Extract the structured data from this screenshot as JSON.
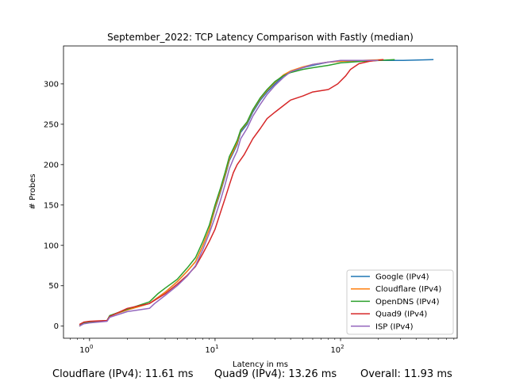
{
  "chart_data": {
    "type": "line",
    "title": "September_2022: TCP Latency Comparison with Fastly (median)",
    "xlabel": "Latency in ms",
    "ylabel": "# Probes",
    "xscale": "log",
    "xlim": [
      0.62,
      850
    ],
    "ylim": [
      -15,
      347
    ],
    "x_ticks": [
      1,
      10,
      100
    ],
    "y_ticks": [
      0,
      50,
      100,
      150,
      200,
      250,
      300
    ],
    "legend_position": "lower right",
    "series": [
      {
        "name": "Google (IPv4)",
        "color": "#1f77b4",
        "points": [
          [
            0.83,
            0
          ],
          [
            0.9,
            4
          ],
          [
            1.0,
            5
          ],
          [
            1.38,
            7
          ],
          [
            1.45,
            13
          ],
          [
            2.0,
            20
          ],
          [
            3.0,
            28
          ],
          [
            4.0,
            42
          ],
          [
            5.0,
            55
          ],
          [
            6.0,
            68
          ],
          [
            7.0,
            80
          ],
          [
            8.0,
            100
          ],
          [
            9.0,
            120
          ],
          [
            10.0,
            145
          ],
          [
            11.0,
            165
          ],
          [
            12.0,
            185
          ],
          [
            13.0,
            205
          ],
          [
            14.0,
            215
          ],
          [
            15.0,
            225
          ],
          [
            16.0,
            240
          ],
          [
            18.0,
            250
          ],
          [
            20.0,
            265
          ],
          [
            23.0,
            280
          ],
          [
            26.0,
            290
          ],
          [
            30.0,
            300
          ],
          [
            35.0,
            310
          ],
          [
            40.0,
            315
          ],
          [
            50.0,
            320
          ],
          [
            60.0,
            323
          ],
          [
            80.0,
            327
          ],
          [
            100.0,
            328
          ],
          [
            200.0,
            329
          ],
          [
            300.0,
            329
          ],
          [
            550.0,
            330
          ]
        ]
      },
      {
        "name": "Cloudflare (IPv4)",
        "color": "#ff7f0e",
        "points": [
          [
            0.83,
            0
          ],
          [
            0.9,
            4
          ],
          [
            1.0,
            5
          ],
          [
            1.38,
            7
          ],
          [
            1.45,
            13
          ],
          [
            2.0,
            20
          ],
          [
            3.0,
            28
          ],
          [
            4.0,
            42
          ],
          [
            5.0,
            55
          ],
          [
            6.0,
            68
          ],
          [
            7.0,
            80
          ],
          [
            8.0,
            100
          ],
          [
            9.0,
            120
          ],
          [
            10.0,
            147
          ],
          [
            11.0,
            167
          ],
          [
            12.0,
            187
          ],
          [
            13.0,
            207
          ],
          [
            14.0,
            217
          ],
          [
            15.0,
            227
          ],
          [
            16.0,
            242
          ],
          [
            18.0,
            252
          ],
          [
            20.0,
            267
          ],
          [
            23.0,
            282
          ],
          [
            26.0,
            292
          ],
          [
            30.0,
            302
          ],
          [
            35.0,
            311
          ],
          [
            40.0,
            316
          ],
          [
            50.0,
            321
          ],
          [
            60.0,
            324
          ],
          [
            80.0,
            327
          ],
          [
            100.0,
            328
          ],
          [
            150.0,
            329
          ],
          [
            220.0,
            330
          ]
        ]
      },
      {
        "name": "OpenDNS (IPv4)",
        "color": "#2ca02c",
        "points": [
          [
            0.83,
            0
          ],
          [
            0.9,
            4
          ],
          [
            1.0,
            5
          ],
          [
            1.38,
            7
          ],
          [
            1.45,
            13
          ],
          [
            2.0,
            21
          ],
          [
            3.0,
            30
          ],
          [
            3.5,
            40
          ],
          [
            4.0,
            47
          ],
          [
            5.0,
            58
          ],
          [
            6.0,
            72
          ],
          [
            7.0,
            85
          ],
          [
            8.0,
            105
          ],
          [
            9.0,
            125
          ],
          [
            10.0,
            150
          ],
          [
            11.0,
            170
          ],
          [
            12.0,
            190
          ],
          [
            13.0,
            210
          ],
          [
            14.0,
            220
          ],
          [
            15.0,
            230
          ],
          [
            16.0,
            243
          ],
          [
            18.0,
            253
          ],
          [
            20.0,
            268
          ],
          [
            23.0,
            283
          ],
          [
            26.0,
            293
          ],
          [
            30.0,
            303
          ],
          [
            35.0,
            310
          ],
          [
            40.0,
            314
          ],
          [
            50.0,
            318
          ],
          [
            60.0,
            320
          ],
          [
            80.0,
            323
          ],
          [
            100.0,
            326
          ],
          [
            150.0,
            328
          ],
          [
            270.0,
            330
          ]
        ]
      },
      {
        "name": "Quad9 (IPv4)",
        "color": "#d62728",
        "points": [
          [
            0.83,
            2
          ],
          [
            0.9,
            5
          ],
          [
            1.0,
            6
          ],
          [
            1.38,
            7
          ],
          [
            1.45,
            12
          ],
          [
            2.0,
            22
          ],
          [
            3.0,
            28
          ],
          [
            4.0,
            40
          ],
          [
            5.0,
            52
          ],
          [
            6.0,
            63
          ],
          [
            7.0,
            74
          ],
          [
            8.0,
            90
          ],
          [
            9.0,
            105
          ],
          [
            10.0,
            120
          ],
          [
            11.0,
            140
          ],
          [
            12.0,
            158
          ],
          [
            13.0,
            175
          ],
          [
            14.0,
            190
          ],
          [
            15.0,
            200
          ],
          [
            17.0,
            212
          ],
          [
            20.0,
            232
          ],
          [
            23.0,
            245
          ],
          [
            26.0,
            257
          ],
          [
            30.0,
            265
          ],
          [
            35.0,
            273
          ],
          [
            40.0,
            280
          ],
          [
            50.0,
            285
          ],
          [
            60.0,
            290
          ],
          [
            80.0,
            293
          ],
          [
            95.0,
            300
          ],
          [
            110.0,
            310
          ],
          [
            120.0,
            318
          ],
          [
            140.0,
            325
          ],
          [
            170.0,
            328
          ],
          [
            220.0,
            330
          ]
        ]
      },
      {
        "name": "ISP (IPv4)",
        "color": "#9467bd",
        "points": [
          [
            0.83,
            0
          ],
          [
            0.9,
            3
          ],
          [
            1.0,
            4
          ],
          [
            1.38,
            6
          ],
          [
            1.45,
            11
          ],
          [
            2.0,
            18
          ],
          [
            3.0,
            22
          ],
          [
            3.3,
            28
          ],
          [
            4.0,
            38
          ],
          [
            5.0,
            50
          ],
          [
            6.0,
            62
          ],
          [
            7.0,
            75
          ],
          [
            8.0,
            95
          ],
          [
            9.0,
            115
          ],
          [
            10.0,
            135
          ],
          [
            11.0,
            155
          ],
          [
            12.0,
            175
          ],
          [
            13.0,
            195
          ],
          [
            14.0,
            207
          ],
          [
            15.0,
            217
          ],
          [
            16.0,
            232
          ],
          [
            18.0,
            245
          ],
          [
            20.0,
            260
          ],
          [
            23.0,
            275
          ],
          [
            26.0,
            287
          ],
          [
            30.0,
            298
          ],
          [
            35.0,
            308
          ],
          [
            40.0,
            315
          ],
          [
            50.0,
            320
          ],
          [
            60.0,
            324
          ],
          [
            80.0,
            327
          ],
          [
            100.0,
            329
          ],
          [
            200.0,
            329
          ]
        ]
      }
    ]
  },
  "footer": {
    "cloudflare": "Cloudflare (IPv4): 11.61 ms",
    "quad9": "Quad9 (IPv4): 13.26 ms",
    "overall": "Overall: 11.93 ms"
  }
}
